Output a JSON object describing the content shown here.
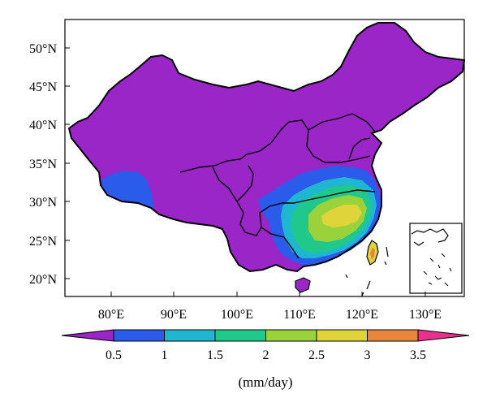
{
  "map": {
    "lat_ticks": [
      "50°N",
      "45°N",
      "40°N",
      "35°N",
      "30°N",
      "25°N",
      "20°N"
    ],
    "lon_ticks": [
      "80°E",
      "90°E",
      "100°E",
      "110°E",
      "120°E",
      "130°E"
    ],
    "region_colors": {
      "land": "#9b26c8",
      "level_0_5": "#2b5bea",
      "level_1": "#1fb6d2",
      "level_1_5": "#21c88b",
      "level_2": "#9ad23b",
      "level_2_5": "#dfd53a",
      "level_3": "#e9863a",
      "level_3_5": "#e8318f"
    }
  },
  "colorbar": {
    "colors": [
      "#9b26c8",
      "#2b5bea",
      "#1fb6d2",
      "#21c88b",
      "#9ad23b",
      "#dfd53a",
      "#e9863a",
      "#e8318f"
    ],
    "labels": [
      "0.5",
      "1",
      "1.5",
      "2",
      "2.5",
      "3",
      "3.5"
    ],
    "units": "(mm/day)"
  }
}
